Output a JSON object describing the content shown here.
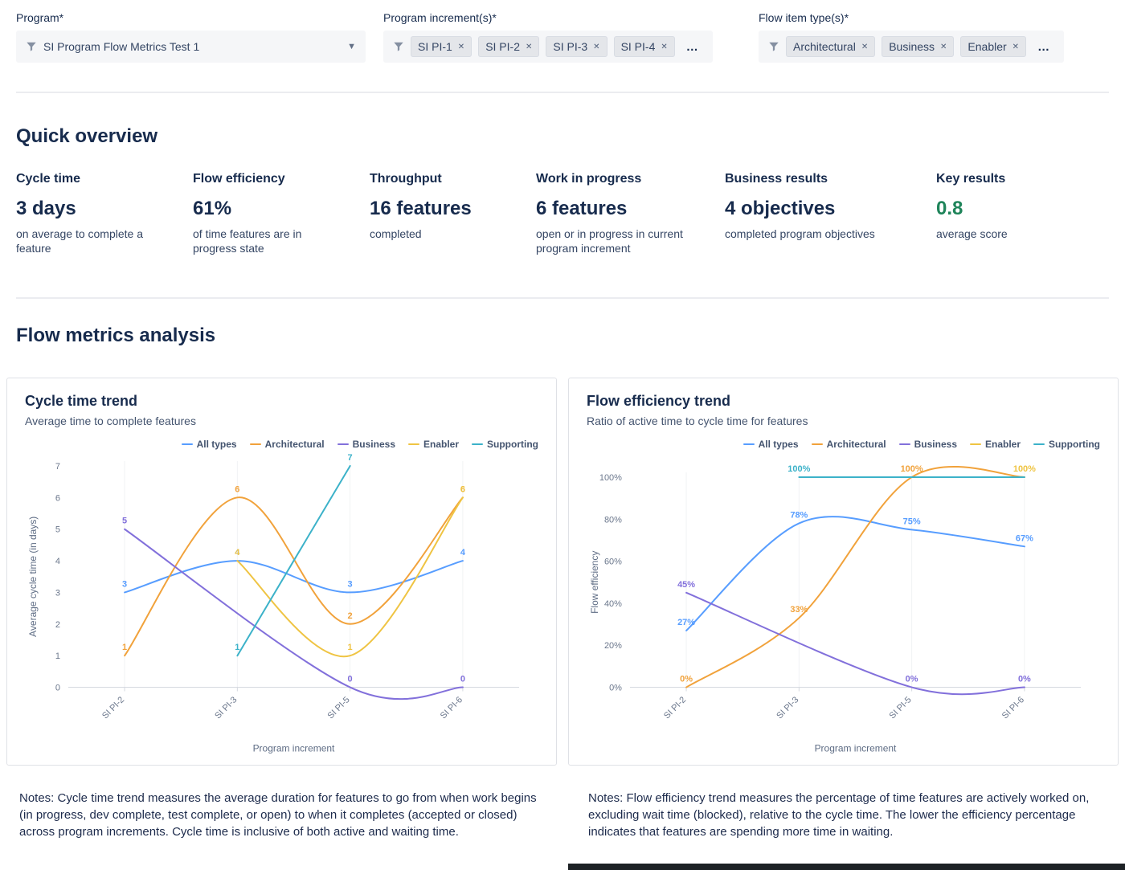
{
  "filters": {
    "program": {
      "label": "Program*",
      "value": "SI Program Flow Metrics Test 1"
    },
    "program_increments": {
      "label": "Program increment(s)*",
      "tags": [
        "SI PI-1",
        "SI PI-2",
        "SI PI-3",
        "SI PI-4"
      ],
      "overflow": "…"
    },
    "flow_item_types": {
      "label": "Flow item type(s)*",
      "tags": [
        "Architectural",
        "Business",
        "Enabler"
      ],
      "overflow": "…"
    }
  },
  "quick_overview": {
    "title": "Quick overview",
    "metrics": [
      {
        "title": "Cycle time",
        "value": "3 days",
        "description": "on average to complete a feature"
      },
      {
        "title": "Flow efficiency",
        "value": "61%",
        "description": "of time features are in progress state"
      },
      {
        "title": "Throughput",
        "value": "16 features",
        "description": "completed"
      },
      {
        "title": "Work in progress",
        "value": "6 features",
        "description": "open or in progress in current program increment"
      },
      {
        "title": "Business results",
        "value": "4 objectives",
        "description": "completed program objectives"
      },
      {
        "title": "Key results",
        "value": "0.8",
        "description": "average score",
        "value_color": "#1F845A"
      }
    ]
  },
  "flow_metrics": {
    "title": "Flow metrics analysis",
    "notes_left": "Notes: Cycle time trend measures the average duration for features to go from when work begins (in progress, dev complete, test complete, or open) to when it completes (accepted or closed) across program increments. Cycle time is inclusive of both active and waiting time.",
    "notes_right": "Notes: Flow efficiency trend measures the percentage of time features are actively worked on, excluding wait time (blocked), relative to the cycle time. The lower the efficiency percentage indicates that features are spending more time in waiting."
  },
  "chart_data": [
    {
      "type": "line",
      "title": "Cycle time trend",
      "subtitle": "Average time to complete features",
      "xlabel": "Program increment",
      "ylabel": "Average cycle time (in days)",
      "categories": [
        "SI PI-2",
        "SI PI-3",
        "SI PI-5",
        "SI PI-6"
      ],
      "ylim": [
        0,
        7
      ],
      "yticks": [
        0,
        1,
        2,
        3,
        4,
        5,
        6,
        7
      ],
      "ytick_suffix": "",
      "label_suffix": "",
      "grid": false,
      "legend_position": "top-right",
      "series": [
        {
          "name": "All types",
          "color": "#579DFF",
          "values": [
            3,
            4,
            3,
            4
          ]
        },
        {
          "name": "Architectural",
          "color": "#F1A23B",
          "values": [
            1,
            6,
            2,
            6
          ]
        },
        {
          "name": "Business",
          "color": "#8270DB",
          "values": [
            5,
            null,
            0,
            0
          ]
        },
        {
          "name": "Enabler",
          "color": "#EFC443",
          "values": [
            null,
            4,
            1,
            6
          ]
        },
        {
          "name": "Supporting",
          "color": "#3CB2C9",
          "values": [
            null,
            1,
            7,
            null
          ]
        }
      ]
    },
    {
      "type": "line",
      "title": "Flow efficiency trend",
      "subtitle": "Ratio of active time to cycle time for features",
      "xlabel": "Program increment",
      "ylabel": "Flow efficiency",
      "categories": [
        "SI PI-2",
        "SI PI-3",
        "SI PI-5",
        "SI PI-6"
      ],
      "ylim": [
        0,
        100
      ],
      "yticks": [
        0,
        20,
        40,
        60,
        80,
        100
      ],
      "ytick_suffix": "%",
      "label_suffix": "%",
      "grid": false,
      "legend_position": "top-right",
      "series": [
        {
          "name": "All types",
          "color": "#579DFF",
          "values": [
            27,
            78,
            75,
            67
          ]
        },
        {
          "name": "Architectural",
          "color": "#F1A23B",
          "values": [
            0,
            33,
            100,
            100
          ],
          "label_mask": [
            1,
            1,
            1,
            0
          ]
        },
        {
          "name": "Business",
          "color": "#8270DB",
          "values": [
            45,
            null,
            0,
            0
          ]
        },
        {
          "name": "Enabler",
          "color": "#EFC443",
          "values": [
            null,
            null,
            100,
            100
          ],
          "label_mask": [
            0,
            0,
            0,
            1
          ]
        },
        {
          "name": "Supporting",
          "color": "#3CB2C9",
          "values": [
            null,
            100,
            100,
            100
          ],
          "label_mask": [
            0,
            1,
            0,
            0
          ]
        }
      ]
    }
  ]
}
